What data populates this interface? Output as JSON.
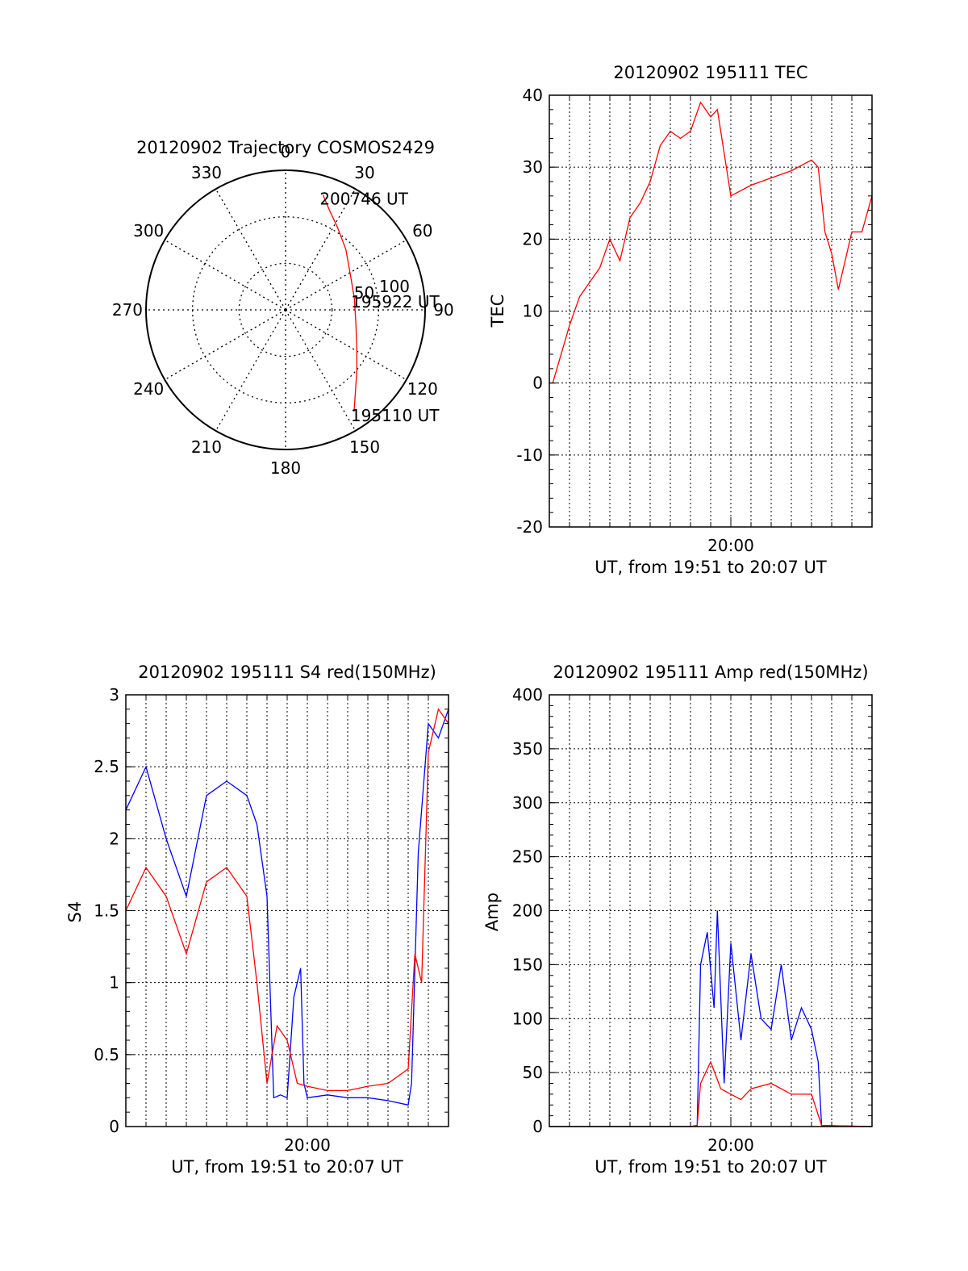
{
  "polar": {
    "title": "20120902 Trajectory COSMOS2429",
    "azimuth_labels": [
      "0",
      "30",
      "60",
      "90",
      "120",
      "150",
      "180",
      "210",
      "240",
      "270",
      "300",
      "330"
    ],
    "radial_labels": [
      "50",
      "100"
    ],
    "trajectory_color": "#ff0000",
    "trajectory": [
      [
        18,
        78
      ],
      [
        24,
        70
      ],
      [
        32,
        63
      ],
      [
        45,
        55
      ],
      [
        60,
        48
      ],
      [
        80,
        45
      ],
      [
        100,
        46
      ],
      [
        118,
        52
      ],
      [
        130,
        60
      ],
      [
        140,
        70
      ],
      [
        146,
        79
      ]
    ],
    "points": [
      {
        "label": "200746 UT",
        "az": 18,
        "zenith": 78
      },
      {
        "label": "195922 UT",
        "az": 80,
        "zenith": 45
      },
      {
        "label": "195110 UT",
        "az": 146,
        "zenith": 79
      }
    ]
  },
  "chart_data": [
    {
      "type": "line",
      "title": "20120902 195111 TEC",
      "ylabel": "TEC",
      "xlabel": "UT, from 19:51 to 20:07 UT",
      "x_ticklabels": [
        "20:00"
      ],
      "xlim": [
        "19:51",
        "20:07"
      ],
      "ylim": [
        -20,
        40
      ],
      "yticks": [
        -20,
        -10,
        0,
        10,
        20,
        30,
        40
      ],
      "grid": true,
      "series": [
        {
          "color": "#ff0000",
          "x": [
            "19:51:10",
            "19:52:00",
            "19:52:30",
            "19:53:00",
            "19:53:30",
            "19:54:00",
            "19:54:30",
            "19:55:00",
            "19:55:30",
            "19:56:00",
            "19:56:30",
            "19:57:00",
            "19:57:30",
            "19:58:00",
            "19:58:30",
            "19:59:00",
            "19:59:20",
            "20:00:00",
            "20:01:00",
            "20:02:00",
            "20:03:00",
            "20:04:00",
            "20:04:20",
            "20:04:40",
            "20:05:00",
            "20:05:20",
            "20:05:40",
            "20:06:00",
            "20:06:30",
            "20:07:00"
          ],
          "y": [
            0,
            8,
            12,
            14,
            16,
            20,
            17,
            23,
            25,
            28,
            33,
            35,
            34,
            35,
            39,
            37,
            38,
            26,
            27.5,
            28.5,
            29.5,
            31,
            30,
            21,
            18,
            13,
            17,
            21,
            21,
            26
          ]
        }
      ]
    },
    {
      "type": "line",
      "title": "20120902 195111 S4 red(150MHz)",
      "ylabel": "S4",
      "xlabel": "UT, from 19:51 to 20:07 UT",
      "x_ticklabels": [
        "20:00"
      ],
      "xlim": [
        "19:51",
        "20:07"
      ],
      "ylim": [
        0,
        3
      ],
      "yticks": [
        0,
        0.5,
        1,
        1.5,
        2,
        2.5,
        3
      ],
      "grid": true,
      "series": [
        {
          "color": "#0000ff",
          "x": [
            "19:51:00",
            "19:52:00",
            "19:53:00",
            "19:54:00",
            "19:55:00",
            "19:56:00",
            "19:57:00",
            "19:57:30",
            "19:58:00",
            "19:58:20",
            "19:58:40",
            "19:59:00",
            "19:59:20",
            "19:59:40",
            "19:59:50",
            "20:00:00",
            "20:01:00",
            "20:02:00",
            "20:03:00",
            "20:04:00",
            "20:05:00",
            "20:05:10",
            "20:05:30",
            "20:06:00",
            "20:06:30",
            "20:07:00"
          ],
          "y": [
            2.2,
            2.5,
            2.0,
            1.6,
            2.3,
            2.4,
            2.3,
            2.1,
            1.6,
            0.2,
            0.22,
            0.2,
            0.9,
            1.1,
            0.3,
            0.2,
            0.22,
            0.2,
            0.2,
            0.18,
            0.15,
            0.3,
            1.9,
            2.8,
            2.7,
            2.9
          ]
        },
        {
          "color": "#ff0000",
          "x": [
            "19:51:00",
            "19:52:00",
            "19:53:00",
            "19:54:00",
            "19:55:00",
            "19:56:00",
            "19:57:00",
            "19:57:30",
            "19:58:00",
            "19:58:30",
            "19:59:00",
            "19:59:30",
            "20:00:00",
            "20:01:00",
            "20:02:00",
            "20:03:00",
            "20:04:00",
            "20:05:00",
            "20:05:20",
            "20:05:40",
            "20:06:00",
            "20:06:30",
            "20:07:00"
          ],
          "y": [
            1.5,
            1.8,
            1.6,
            1.2,
            1.7,
            1.8,
            1.6,
            1.0,
            0.3,
            0.7,
            0.6,
            0.3,
            0.28,
            0.25,
            0.25,
            0.28,
            0.3,
            0.4,
            1.2,
            1.0,
            2.6,
            2.9,
            2.8
          ]
        }
      ]
    },
    {
      "type": "line",
      "title": "20120902 195111 Amp red(150MHz)",
      "ylabel": "Amp",
      "xlabel": "UT, from 19:51 to 20:07 UT",
      "x_ticklabels": [
        "20:00"
      ],
      "xlim": [
        "19:51",
        "20:07"
      ],
      "ylim": [
        0,
        400
      ],
      "yticks": [
        0,
        50,
        100,
        150,
        200,
        250,
        300,
        350,
        400
      ],
      "grid": true,
      "series": [
        {
          "color": "#0000ff",
          "x": [
            "19:51:00",
            "19:58:00",
            "19:58:20",
            "19:58:30",
            "19:58:50",
            "19:59:10",
            "19:59:20",
            "19:59:40",
            "20:00:00",
            "20:00:30",
            "20:01:00",
            "20:01:30",
            "20:02:00",
            "20:02:30",
            "20:03:00",
            "20:03:30",
            "20:04:00",
            "20:04:20",
            "20:04:30",
            "20:07:00"
          ],
          "y": [
            0,
            0,
            1,
            150,
            180,
            110,
            200,
            40,
            170,
            80,
            160,
            100,
            90,
            150,
            80,
            110,
            90,
            60,
            1,
            0
          ]
        },
        {
          "color": "#ff0000",
          "x": [
            "19:51:00",
            "19:58:00",
            "19:58:20",
            "19:58:30",
            "19:59:00",
            "19:59:30",
            "20:00:00",
            "20:00:30",
            "20:01:00",
            "20:02:00",
            "20:03:00",
            "20:04:00",
            "20:04:30",
            "20:07:00"
          ],
          "y": [
            0,
            0,
            1,
            40,
            60,
            35,
            30,
            25,
            35,
            40,
            30,
            30,
            1,
            0
          ]
        }
      ]
    }
  ]
}
